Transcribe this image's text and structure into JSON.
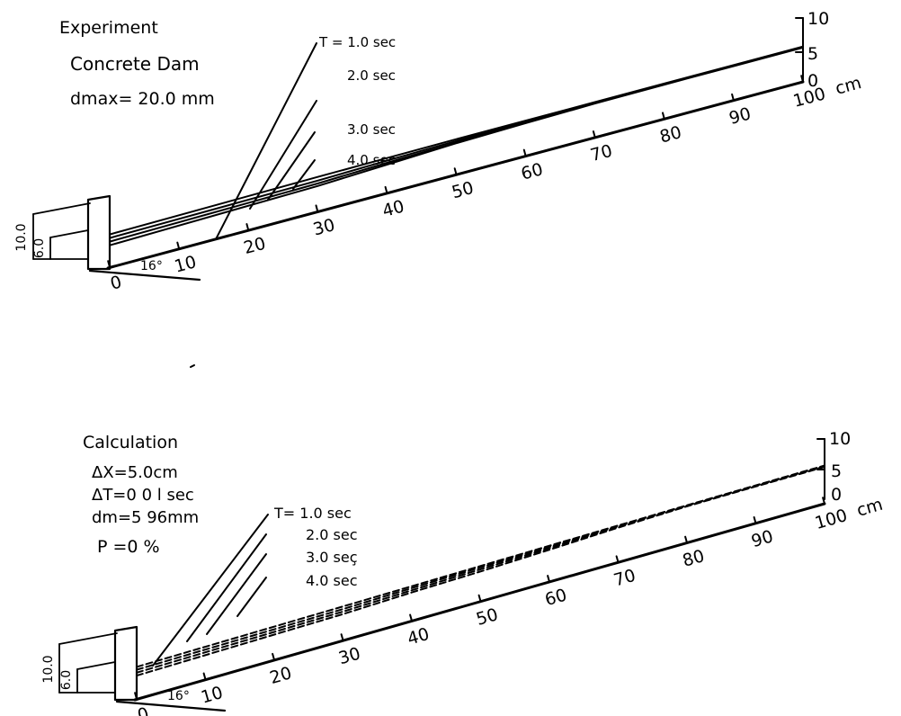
{
  "panels": [
    {
      "id": "experiment",
      "title": "Experiment",
      "params": [
        "Concrete  Dam",
        "dmax= 20.0 mm"
      ],
      "series": [
        "T = 1.0 sec",
        "2.0 sec",
        "3.0 sec",
        "4.0 sec"
      ],
      "line_style": "solid",
      "profile_x": [
        0,
        30,
        40,
        50,
        60,
        70,
        80,
        90,
        100
      ],
      "profiles": [
        [
          9.0,
          9.5,
          9.6,
          9.7,
          9.7,
          9.7,
          9.7,
          9.7,
          9.7
        ],
        [
          8.0,
          8.5,
          8.9,
          9.2,
          9.4,
          9.5,
          9.6,
          9.6,
          9.6
        ],
        [
          7.0,
          7.7,
          8.3,
          8.8,
          9.2,
          9.4,
          9.5,
          9.5,
          9.5
        ],
        [
          6.0,
          7.0,
          7.8,
          8.6,
          9.0,
          9.3,
          9.4,
          9.4,
          9.4
        ]
      ],
      "dim_labels": [
        "10.0",
        "6.0"
      ],
      "angle_label": "16°",
      "axis_ticks": [
        "0",
        "10",
        "20",
        "30",
        "40",
        "50",
        "60",
        "70",
        "80",
        "90",
        "100"
      ],
      "axis_unit": "cm",
      "scale_ticks": [
        "10",
        "5",
        "0"
      ]
    },
    {
      "id": "calculation",
      "title": "Calculation",
      "params": [
        "ΔX=5.0cm",
        "ΔT=0 0 l sec",
        "dm=5 96mm",
        "P =0  %"
      ],
      "series": [
        "T=  1.0  sec",
        "2.0  sec",
        "3.0  seç",
        "4.0  sec"
      ],
      "line_style": "dashed",
      "profile_x": [
        0,
        30,
        40,
        50,
        60,
        70,
        80,
        90,
        100
      ],
      "profiles": [
        [
          8.8,
          9.3,
          9.5,
          9.7,
          9.9,
          10.1,
          10.3,
          10.4,
          10.5
        ],
        [
          8.0,
          8.6,
          9.0,
          9.3,
          9.6,
          9.9,
          10.2,
          10.3,
          10.3
        ],
        [
          7.2,
          7.9,
          8.4,
          8.8,
          9.2,
          9.7,
          10.1,
          10.2,
          10.2
        ],
        [
          6.4,
          7.2,
          7.8,
          8.2,
          8.8,
          9.5,
          10.0,
          10.1,
          10.1
        ]
      ],
      "dim_labels": [
        "10.0",
        "6.0"
      ],
      "angle_label": "16°",
      "axis_ticks": [
        "0",
        "10",
        "20",
        "30",
        "40",
        "50",
        "60",
        "70",
        "80",
        "90",
        "100"
      ],
      "axis_unit": "cm",
      "scale_ticks": [
        "10",
        "5",
        "0"
      ]
    }
  ]
}
